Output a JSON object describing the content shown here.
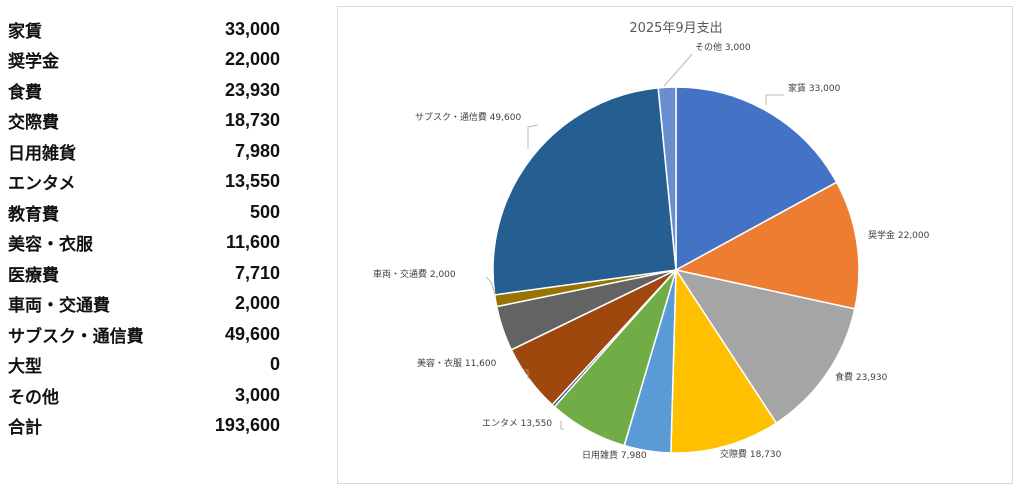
{
  "table": {
    "rows": [
      {
        "label": "家賃",
        "value": "33,000"
      },
      {
        "label": "奨学金",
        "value": "22,000"
      },
      {
        "label": "食費",
        "value": "23,930"
      },
      {
        "label": "交際費",
        "value": "18,730"
      },
      {
        "label": "日用雑貨",
        "value": "7,980"
      },
      {
        "label": "エンタメ",
        "value": "13,550"
      },
      {
        "label": "教育費",
        "value": "500"
      },
      {
        "label": "美容・衣服",
        "value": "11,600"
      },
      {
        "label": "医療費",
        "value": "7,710"
      },
      {
        "label": "車両・交通費",
        "value": "2,000"
      },
      {
        "label": "サブスク・通信費",
        "value": "49,600"
      },
      {
        "label": "大型",
        "value": "0"
      },
      {
        "label": "その他",
        "value": "3,000"
      },
      {
        "label": "合計",
        "value": "193,600"
      }
    ]
  },
  "chart_data": {
    "type": "pie",
    "title": "2025年9月支出",
    "categories": [
      "家賃",
      "奨学金",
      "食費",
      "交際費",
      "日用雑貨",
      "エンタメ",
      "教育費",
      "美容・衣服",
      "医療費",
      "車両・交通費",
      "サブスク・通信費",
      "大型",
      "その他"
    ],
    "values": [
      33000,
      22000,
      23930,
      18730,
      7980,
      13550,
      500,
      11600,
      7710,
      2000,
      49600,
      0,
      3000
    ],
    "data_labels": [
      "家賃 33,000",
      "奨学金 22,000",
      "食費 23,930",
      "交際費 18,730",
      "日用雑貨 7,980",
      "エンタメ 13,550",
      "",
      "美容・衣服 11,600",
      "",
      "車両・交通費 2,000",
      "サブスク・通信費 49,600",
      "",
      "その他 3,000"
    ],
    "colors": [
      "#4472C4",
      "#ED7D31",
      "#A5A5A5",
      "#FFC000",
      "#5B9BD5",
      "#70AD47",
      "#264478",
      "#9E480E",
      "#636363",
      "#997300",
      "#255E91",
      "#43682B",
      "#698ED0"
    ],
    "start_angle": "12 o'clock",
    "direction": "clockwise"
  }
}
